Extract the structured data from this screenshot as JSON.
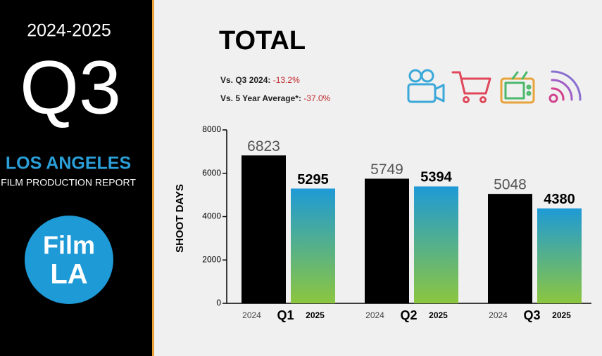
{
  "sidebar": {
    "period": "2024-2025",
    "quarter": "Q3",
    "region": "LOS ANGELES",
    "report": "FILM PRODUCTION REPORT",
    "logo": [
      "Film",
      "LA"
    ]
  },
  "comparisons": [
    {
      "label": "Vs. Q3 2024:",
      "value": "-13.2%"
    },
    {
      "label": "Vs. 5 Year Average*:",
      "value": "-37.0%"
    }
  ],
  "chart_data": {
    "type": "bar",
    "title": "TOTAL",
    "y_label": "SHOOT DAYS",
    "categories": [
      "Q1",
      "Q2",
      "Q3"
    ],
    "series": [
      {
        "name": "2024",
        "color": "#000000",
        "values": [
          6823,
          5749,
          5048
        ]
      },
      {
        "name": "2025",
        "color": "#1e9ad6",
        "gradient": [
          "#1e9ad6",
          "#8cc63f"
        ],
        "values": [
          5295,
          5394,
          4380
        ]
      }
    ],
    "ylim": [
      0,
      8000
    ],
    "yticks": [
      0,
      2000,
      4000,
      6000,
      8000
    ]
  }
}
